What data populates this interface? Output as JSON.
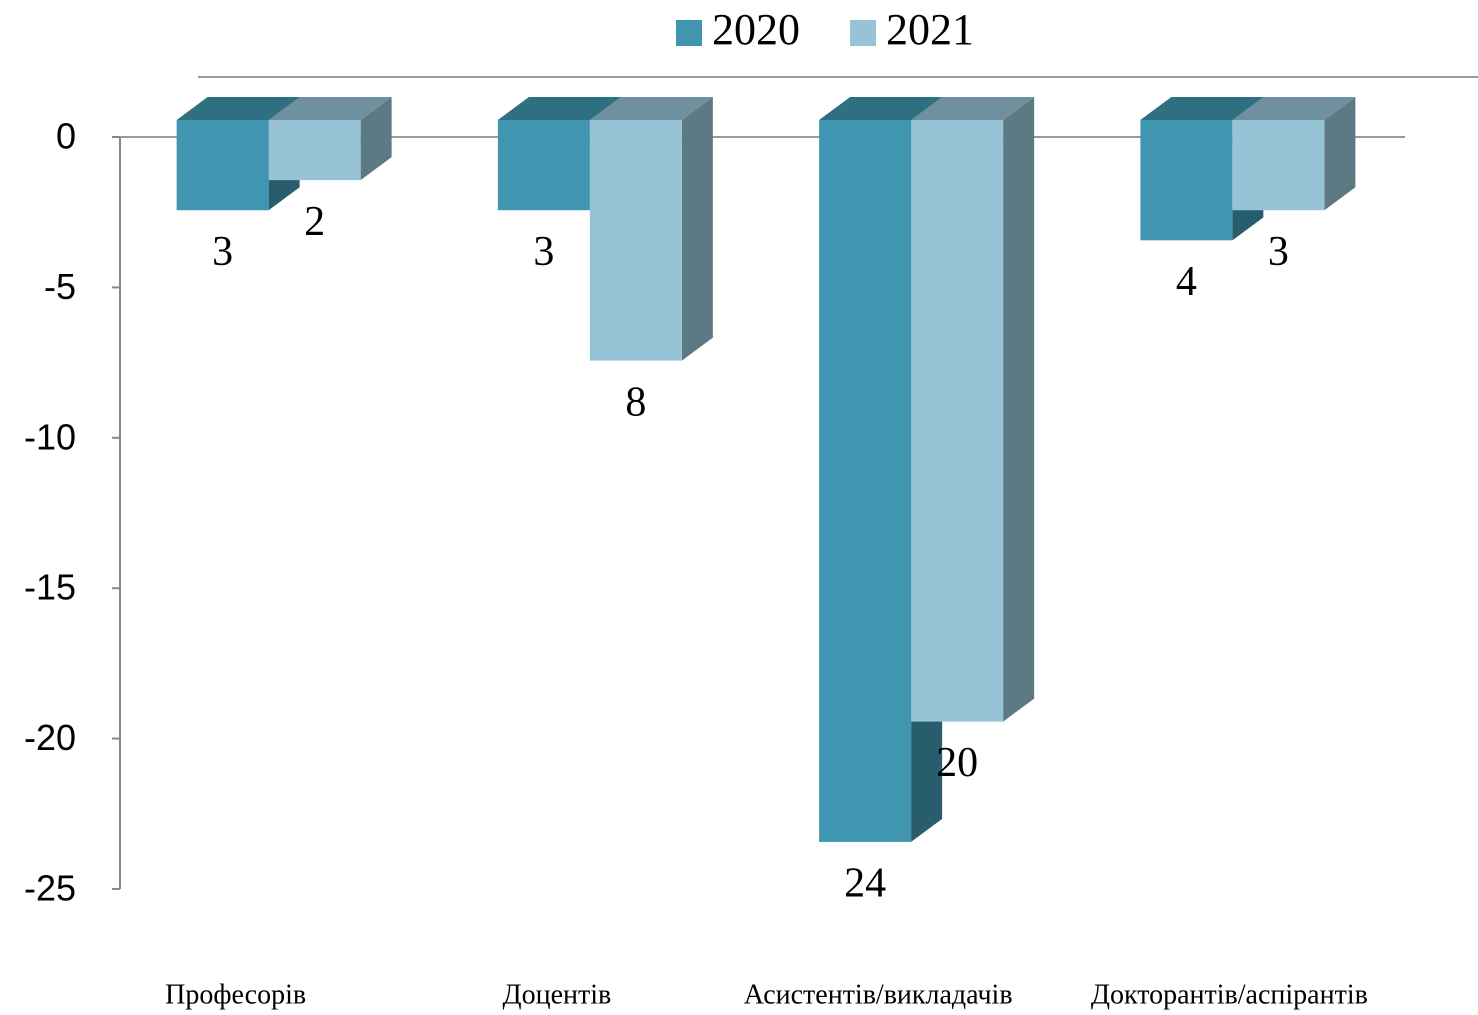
{
  "chart_data": {
    "type": "bar3d",
    "categories": [
      "Професорів",
      "Доцентів",
      "Асистентів/викладачів",
      "Докторантів/аспірантів"
    ],
    "series": [
      {
        "name": "2020",
        "color": "#4096b0",
        "values": [
          -3,
          -3,
          -24,
          -4
        ],
        "value_labels": [
          "3",
          "3",
          "24",
          "4"
        ]
      },
      {
        "name": "2021",
        "color": "#96c3d5",
        "values": [
          -2,
          -8,
          -20,
          -3
        ],
        "value_labels": [
          "2",
          "8",
          "20",
          "3"
        ]
      }
    ],
    "ylim": [
      -25,
      0
    ],
    "yticks": [
      0,
      -5,
      -10,
      -15,
      -20,
      -25
    ],
    "legend": "top"
  }
}
